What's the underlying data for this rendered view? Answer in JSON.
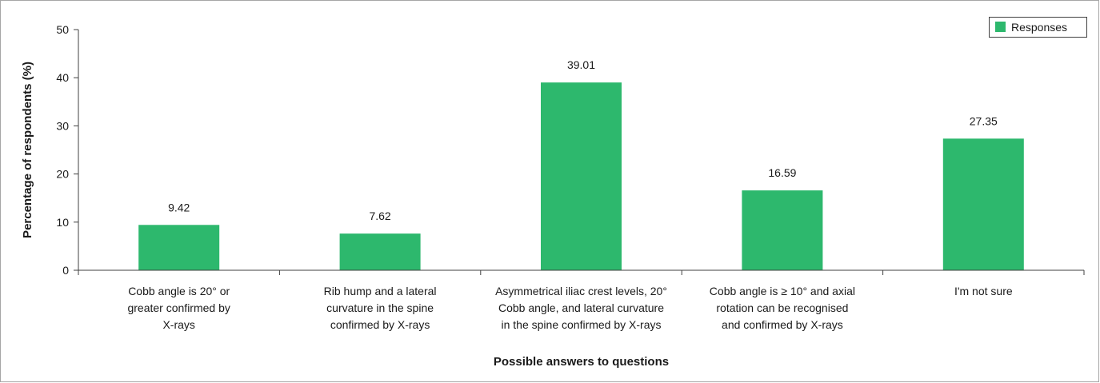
{
  "chart_data": {
    "type": "bar",
    "categories": [
      [
        "Cobb angle is 20° or",
        "greater confirmed by",
        "X-rays"
      ],
      [
        "Rib hump and a lateral",
        "curvature in the spine",
        "confirmed by X-rays"
      ],
      [
        "Asymmetrical iliac crest levels, 20°",
        "Cobb angle, and lateral curvature",
        "in the spine confirmed by X-rays"
      ],
      [
        "Cobb angle is ≥ 10° and axial",
        "rotation can be recognised",
        "and confirmed by X-rays"
      ],
      [
        "I'm not sure"
      ]
    ],
    "series": [
      {
        "name": "Responses",
        "values": [
          9.42,
          7.62,
          39.01,
          16.59,
          27.35
        ]
      }
    ],
    "value_labels": [
      "9.42",
      "7.62",
      "39.01",
      "16.59",
      "27.35"
    ],
    "xlabel": "Possible answers to questions",
    "ylabel": "Percentage of respondents (%)",
    "ylim": [
      0,
      50
    ],
    "yticks": [
      0,
      10,
      20,
      30,
      40,
      50
    ],
    "grid": false,
    "legend_position": "top-right",
    "colors": {
      "bar": "#2db86d",
      "axis": "#404040",
      "frame": "#a6a6a6"
    }
  }
}
